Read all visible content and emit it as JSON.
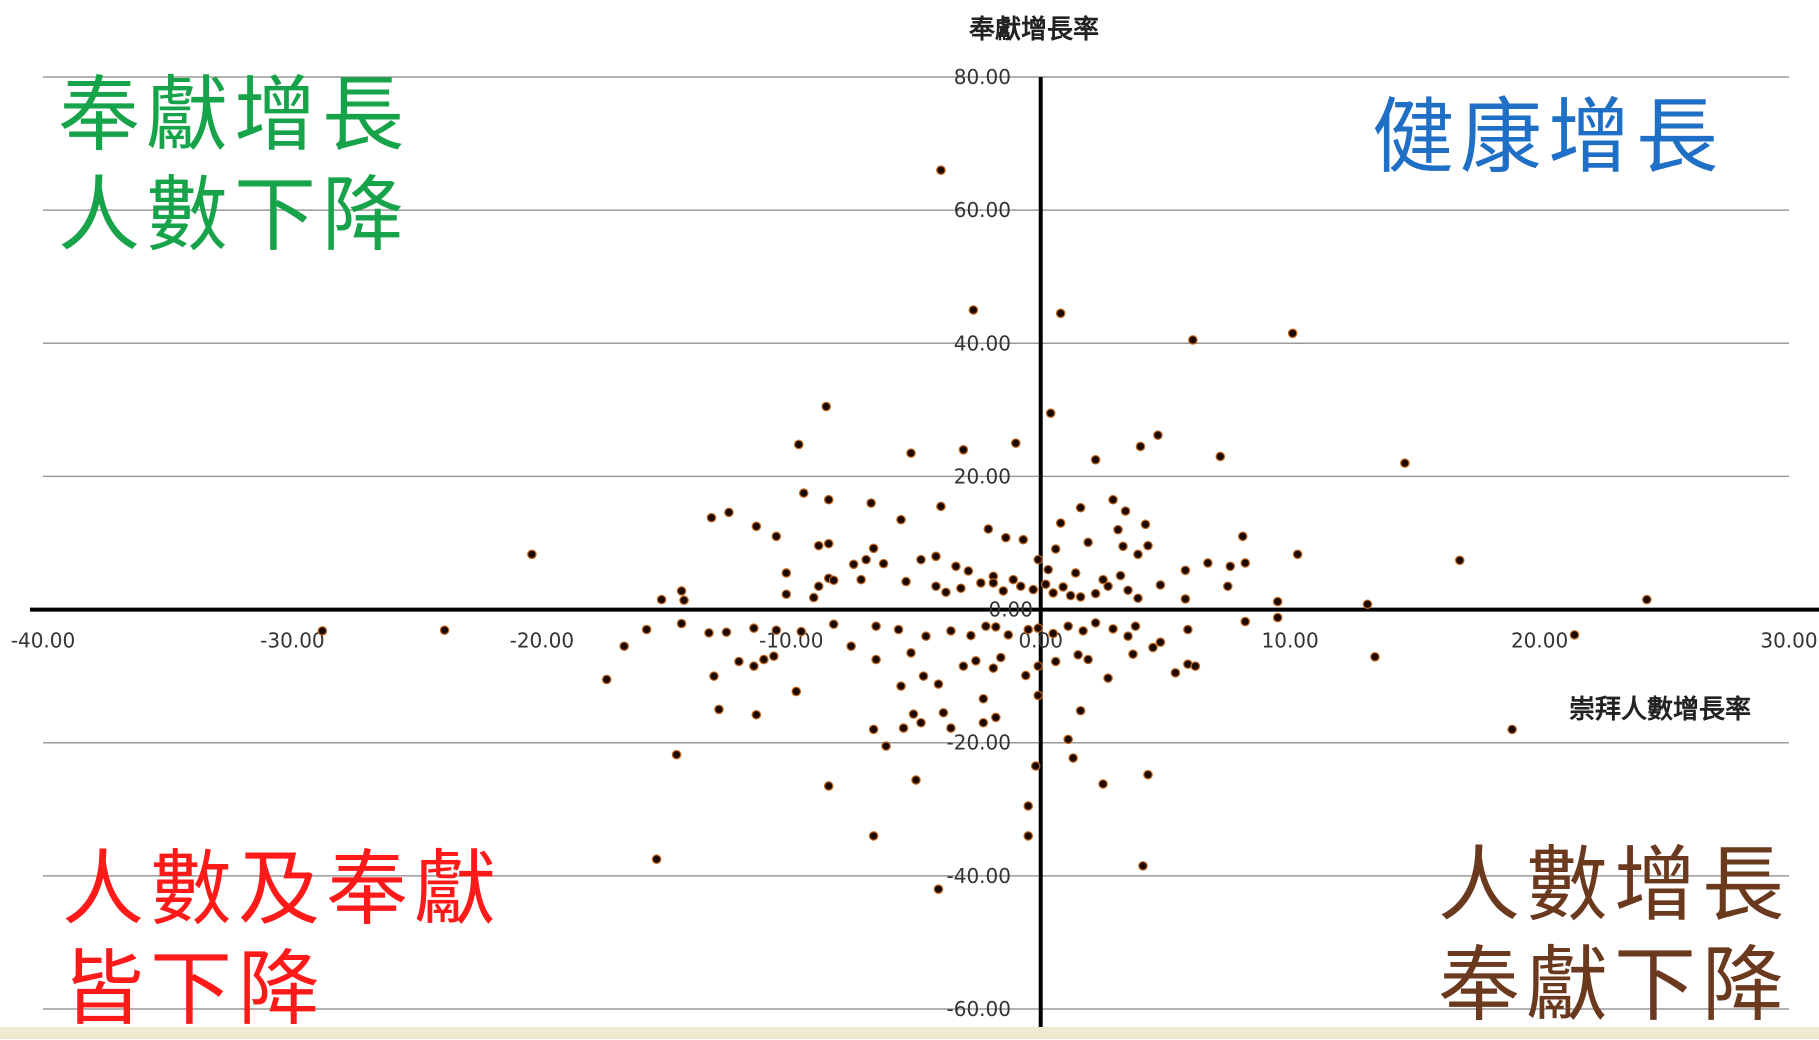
{
  "chart_data": {
    "type": "scatter",
    "title": "",
    "xlabel": "崇拜人數增長率",
    "ylabel": "奉獻增長率",
    "xlim": [
      -40,
      30
    ],
    "ylim": [
      -60,
      80
    ],
    "x_ticks": [
      "-40.00",
      "-30.00",
      "-20.00",
      "-10.00",
      "0.00",
      "10.00",
      "20.00",
      "30.00"
    ],
    "y_ticks": [
      "80.00",
      "60.00",
      "40.00",
      "20.00",
      "0.00",
      "-20.00",
      "-40.00",
      "-60.00"
    ],
    "grid": "horizontal",
    "marker_color": "#1a0a00",
    "marker_edge": "#c86a1e",
    "points": [
      [
        -4.0,
        66
      ],
      [
        -2.7,
        45
      ],
      [
        0.8,
        44.5
      ],
      [
        6.1,
        40.5
      ],
      [
        10.1,
        41.5
      ],
      [
        -8.6,
        30.5
      ],
      [
        0.4,
        29.5
      ],
      [
        -9.7,
        24.8
      ],
      [
        -5.2,
        23.5
      ],
      [
        -3.1,
        24
      ],
      [
        -1,
        25
      ],
      [
        4,
        24.5
      ],
      [
        4.7,
        26.2
      ],
      [
        7.2,
        23
      ],
      [
        14.6,
        22
      ],
      [
        2.2,
        22.5
      ],
      [
        -9.5,
        17.5
      ],
      [
        -8.5,
        16.5
      ],
      [
        -6.8,
        16
      ],
      [
        -4,
        15.5
      ],
      [
        1.6,
        15.3
      ],
      [
        2.9,
        16.5
      ],
      [
        3.4,
        14.8
      ],
      [
        -13.2,
        13.8
      ],
      [
        -12.5,
        14.6
      ],
      [
        -11.4,
        12.5
      ],
      [
        -10.6,
        11
      ],
      [
        -5.6,
        13.5
      ],
      [
        -2.1,
        12.1
      ],
      [
        0.8,
        13
      ],
      [
        3.1,
        12
      ],
      [
        4.2,
        12.8
      ],
      [
        -8.9,
        9.6
      ],
      [
        -8.5,
        9.9
      ],
      [
        -6.7,
        9.2
      ],
      [
        -4.8,
        7.5
      ],
      [
        -4.2,
        8
      ],
      [
        -3.4,
        6.5
      ],
      [
        -1.4,
        10.8
      ],
      [
        -0.7,
        10.5
      ],
      [
        0.6,
        9.1
      ],
      [
        1.9,
        10.1
      ],
      [
        3.3,
        9.5
      ],
      [
        3.9,
        8.3
      ],
      [
        4.3,
        9.6
      ],
      [
        8.1,
        11
      ],
      [
        10.3,
        8.3
      ],
      [
        16.8,
        7.4
      ],
      [
        -20.4,
        8.3
      ],
      [
        -10.2,
        5.5
      ],
      [
        -7.5,
        6.8
      ],
      [
        -7,
        7.5
      ],
      [
        -6.3,
        6.9
      ],
      [
        -2.9,
        5.8
      ],
      [
        -1.9,
        5
      ],
      [
        -1.1,
        4.5
      ],
      [
        -0.1,
        7.5
      ],
      [
        0.3,
        6
      ],
      [
        1.4,
        5.5
      ],
      [
        2.5,
        4.5
      ],
      [
        3.2,
        5.1
      ],
      [
        5.8,
        5.9
      ],
      [
        6.7,
        7
      ],
      [
        7.6,
        6.5
      ],
      [
        8.2,
        7
      ],
      [
        -15.2,
        1.5
      ],
      [
        -14.4,
        2.8
      ],
      [
        -14.3,
        1.4
      ],
      [
        -10.2,
        2.3
      ],
      [
        -9.1,
        1.8
      ],
      [
        -8.9,
        3.5
      ],
      [
        -8.5,
        4.7
      ],
      [
        -8.3,
        4.4
      ],
      [
        -7.2,
        4.5
      ],
      [
        -5.4,
        4.2
      ],
      [
        -4.2,
        3.5
      ],
      [
        -3.8,
        2.6
      ],
      [
        -3.2,
        3.2
      ],
      [
        -2.4,
        4
      ],
      [
        -1.9,
        4
      ],
      [
        -1.5,
        2.8
      ],
      [
        -0.8,
        3.5
      ],
      [
        -0.3,
        3
      ],
      [
        0.2,
        3.8
      ],
      [
        0.5,
        2.5
      ],
      [
        0.9,
        3.4
      ],
      [
        1.2,
        2.1
      ],
      [
        1.6,
        1.9
      ],
      [
        2.2,
        2.4
      ],
      [
        2.7,
        3.5
      ],
      [
        3.5,
        2.9
      ],
      [
        3.9,
        1.7
      ],
      [
        4.8,
        3.7
      ],
      [
        5.8,
        1.6
      ],
      [
        7.5,
        3.5
      ],
      [
        9.5,
        1.2
      ],
      [
        13.1,
        0.8
      ],
      [
        24.3,
        1.5
      ],
      [
        -28.8,
        -3.2
      ],
      [
        -23.9,
        -3.1
      ],
      [
        -16.7,
        -5.5
      ],
      [
        -15.8,
        -3
      ],
      [
        -14.4,
        -2.1
      ],
      [
        -13.3,
        -3.5
      ],
      [
        -12.6,
        -3.4
      ],
      [
        -11.5,
        -2.8
      ],
      [
        -10.6,
        -3.1
      ],
      [
        -9.6,
        -3.3
      ],
      [
        -8.3,
        -2.2
      ],
      [
        -6.6,
        -2.5
      ],
      [
        -5.7,
        -3
      ],
      [
        -4.6,
        -4
      ],
      [
        -3.6,
        -3.2
      ],
      [
        -2.8,
        -3.9
      ],
      [
        -2.2,
        -2.5
      ],
      [
        -1.8,
        -2.6
      ],
      [
        -1.3,
        -3.8
      ],
      [
        -0.5,
        -3
      ],
      [
        -0.1,
        -2.8
      ],
      [
        0.5,
        -3.6
      ],
      [
        1.1,
        -2.5
      ],
      [
        1.7,
        -3.2
      ],
      [
        2.2,
        -2
      ],
      [
        2.9,
        -2.9
      ],
      [
        3.5,
        -4
      ],
      [
        3.8,
        -2.5
      ],
      [
        4.8,
        -4.9
      ],
      [
        5.9,
        -3
      ],
      [
        8.2,
        -1.8
      ],
      [
        9.5,
        -1.2
      ],
      [
        21.4,
        -3.8
      ],
      [
        -17.4,
        -10.5
      ],
      [
        -13.1,
        -10
      ],
      [
        -12.1,
        -7.8
      ],
      [
        -11.5,
        -8.5
      ],
      [
        -11.1,
        -7.5
      ],
      [
        -10.7,
        -7
      ],
      [
        -7.6,
        -5.5
      ],
      [
        -6.6,
        -7.5
      ],
      [
        -5.2,
        -6.5
      ],
      [
        -4.7,
        -10
      ],
      [
        -4.1,
        -11.2
      ],
      [
        -3.1,
        -8.5
      ],
      [
        -2.6,
        -7.7
      ],
      [
        -1.9,
        -8.8
      ],
      [
        -1.6,
        -7.2
      ],
      [
        -0.6,
        -9.9
      ],
      [
        -0.1,
        -8.5
      ],
      [
        0.6,
        -7.8
      ],
      [
        1.5,
        -6.8
      ],
      [
        1.9,
        -7.5
      ],
      [
        2.7,
        -10.3
      ],
      [
        3.7,
        -6.7
      ],
      [
        4.5,
        -5.7
      ],
      [
        5.4,
        -9.5
      ],
      [
        5.9,
        -8.2
      ],
      [
        6.2,
        -8.5
      ],
      [
        13.4,
        -7.1
      ],
      [
        -12.9,
        -15
      ],
      [
        -11.4,
        -15.8
      ],
      [
        -9.8,
        -12.3
      ],
      [
        -5.6,
        -11.5
      ],
      [
        -5.1,
        -15.7
      ],
      [
        -3.9,
        -15.5
      ],
      [
        -2.3,
        -13.4
      ],
      [
        -1.8,
        -16.2
      ],
      [
        -0.1,
        -12.9
      ],
      [
        1.6,
        -15.2
      ],
      [
        -5.5,
        -17.8
      ],
      [
        -4.8,
        -17
      ],
      [
        -3.6,
        -17.8
      ],
      [
        -2.3,
        -17
      ],
      [
        -6.7,
        -18
      ],
      [
        -6.2,
        -20.5
      ],
      [
        1.1,
        -19.5
      ],
      [
        -14.6,
        -21.8
      ],
      [
        -0.2,
        -23.5
      ],
      [
        1.3,
        -22.3
      ],
      [
        4.3,
        -24.8
      ],
      [
        18.9,
        -18
      ],
      [
        -8.5,
        -26.5
      ],
      [
        -5,
        -25.6
      ],
      [
        2.5,
        -26.2
      ],
      [
        -0.5,
        -29.5
      ],
      [
        -0.5,
        -34
      ],
      [
        -6.7,
        -34
      ],
      [
        -15.4,
        -37.5
      ],
      [
        4.1,
        -38.5
      ],
      [
        -4.1,
        -42
      ]
    ]
  },
  "quadrants": {
    "top_left": {
      "lines": [
        "奉獻增長",
        "人數下降"
      ],
      "color": "#17a34a"
    },
    "top_right": {
      "lines": [
        "健康增長"
      ],
      "color": "#1f6fc6"
    },
    "bottom_left": {
      "lines": [
        "人數及奉獻",
        "皆下降"
      ],
      "color": "#ff1a1a"
    },
    "bottom_right": {
      "lines": [
        "人數增長",
        "奉獻下降"
      ],
      "color": "#6b3a1e"
    }
  }
}
